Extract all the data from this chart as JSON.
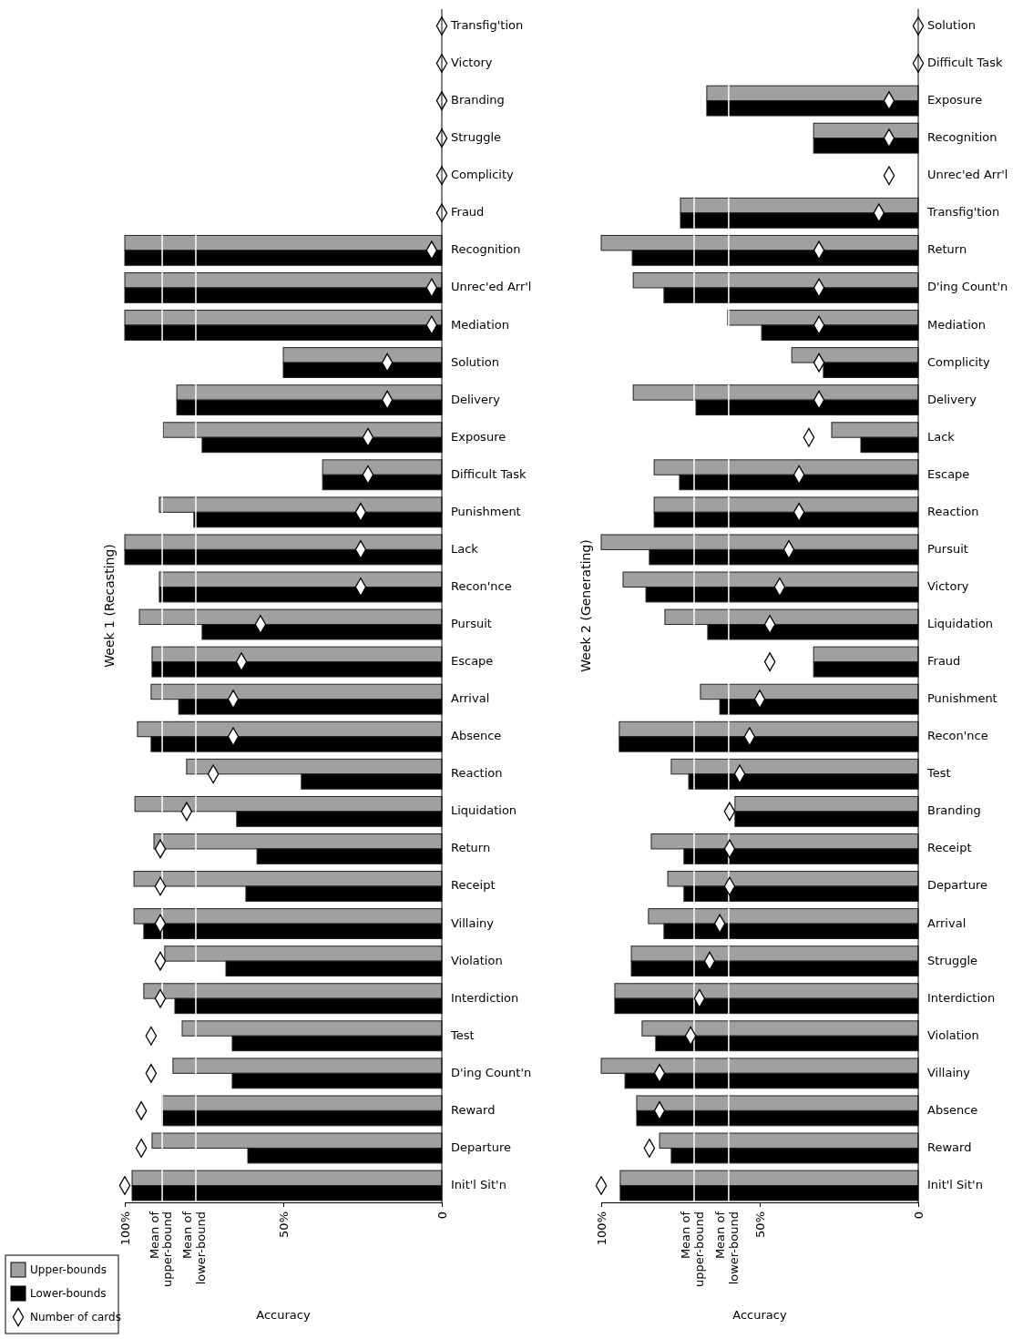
{
  "chart_data": [
    {
      "type": "bar",
      "orientation": "horizontal",
      "title": "Week 1 (Recasting)",
      "xlabel": "Accuracy",
      "categories": [
        "Transfig'tion",
        "Victory",
        "Branding",
        "Struggle",
        "Complicity",
        "Fraud",
        "Recognition",
        "Unrec'ed Arr'l",
        "Mediation",
        "Solution",
        "Delivery",
        "Exposure",
        "Difficult Task",
        "Punishment",
        "Lack",
        "Recon'nce",
        "Pursuit",
        "Escape",
        "Arrival",
        "Absence",
        "Reaction",
        "Liquidation",
        "Return",
        "Receipt",
        "Villainy",
        "Violation",
        "Interdiction",
        "Test",
        "D'ing Count'n",
        "Reward",
        "Departure",
        "Init'l Sit'n"
      ],
      "series": [
        {
          "name": "Upper-bounds",
          "type": "bar",
          "color": "#a0a0a0",
          "values": [
            0,
            0,
            0,
            0,
            0,
            0,
            100,
            100,
            100,
            50,
            83.6,
            87.9,
            37.6,
            89.1,
            100,
            89.1,
            95.4,
            91.4,
            91.7,
            96,
            80.5,
            96.8,
            90.8,
            97.1,
            97.1,
            87.4,
            94,
            81.9,
            84.8,
            88.2,
            91.4,
            97.7
          ]
        },
        {
          "name": "Lower-bounds",
          "type": "bar",
          "color": "#000000",
          "values": [
            0,
            0,
            0,
            0,
            0,
            0,
            100,
            100,
            100,
            50,
            83.6,
            75.6,
            37.6,
            78.2,
            100,
            89.1,
            75.6,
            91.4,
            83,
            91.7,
            44.3,
            64.7,
            58.3,
            61.8,
            94,
            68.1,
            84.2,
            66.1,
            66.1,
            88.2,
            61.2,
            97.7
          ]
        },
        {
          "name": "Number of cards",
          "type": "scatter",
          "color": "#ffffff",
          "marker": "diamond",
          "x": [
            "Transfig'tion",
            "Victory",
            "Branding",
            "Struggle",
            "Complicity",
            "Fraud",
            "Recognition",
            "Unrec'ed Arr'l",
            "Mediation",
            "Solution",
            "Delivery",
            "Exposure",
            "Difficult Task",
            "Punishment",
            "Lack",
            "Recon'nce",
            "Pursuit",
            "Escape",
            "Arrival",
            "Absence",
            "Reaction",
            "Liquidation",
            "Return",
            "Receipt",
            "Villainy",
            "Violation",
            "Interdiction",
            "Test",
            "D'ing Count'n",
            "Reward",
            "Departure",
            "Init'l Sit'n"
          ],
          "values": [
            0,
            0,
            0,
            0,
            0,
            0,
            3.2,
            3.2,
            3.2,
            17.2,
            17.2,
            23.3,
            23.3,
            25.6,
            25.6,
            25.6,
            57.2,
            63.2,
            65.8,
            65.8,
            72.1,
            80.5,
            88.8,
            88.8,
            88.8,
            88.8,
            88.8,
            91.7,
            91.7,
            94.8,
            94.8,
            100
          ]
        }
      ],
      "xlim": [
        100,
        0
      ],
      "xticks": [
        {
          "value": 100,
          "label": "100%"
        },
        {
          "value": 50,
          "label": "50%"
        },
        {
          "value": 0,
          "label": "0"
        }
      ],
      "ref_lines": [
        {
          "axis": "x",
          "value": 88.2,
          "label": "Mean of upper-bound",
          "color": "#ffffff"
        },
        {
          "axis": "x",
          "value": 77.6,
          "label": "Mean of lower-bound",
          "color": "#ffffff"
        }
      ],
      "legend": "bottom left"
    },
    {
      "type": "bar",
      "orientation": "horizontal",
      "title": "Week 2 (Generating)",
      "xlabel": "Accuracy",
      "categories": [
        "Solution",
        "Difficult Task",
        "Exposure",
        "Recognition",
        "Unrec'ed Arr'l",
        "Transfig'tion",
        "Return",
        "D'ing Count'n",
        "Mediation",
        "Complicity",
        "Delivery",
        "Lack",
        "Escape",
        "Reaction",
        "Pursuit",
        "Victory",
        "Liquidation",
        "Fraud",
        "Punishment",
        "Recon'nce",
        "Test",
        "Branding",
        "Receipt",
        "Departure",
        "Arrival",
        "Struggle",
        "Interdiction",
        "Violation",
        "Villainy",
        "Absence",
        "Reward",
        "Init'l Sit'n"
      ],
      "series": [
        {
          "type": "bar",
          "color": "#a0a0a0",
          "values": [
            0,
            0,
            66.7,
            33,
            0,
            75,
            100,
            89.9,
            60.1,
            39.9,
            89.9,
            27.3,
            83.3,
            83.3,
            100,
            93.1,
            79.9,
            33,
            68.7,
            94.3,
            77.9,
            57.8,
            84.2,
            79,
            85.1,
            90.5,
            95.7,
            87.1,
            100,
            88.8,
            81.6,
            94
          ]
        },
        {
          "type": "bar",
          "color": "#000000",
          "values": [
            0,
            0,
            66.7,
            33,
            0,
            75,
            90.2,
            80.2,
            49.4,
            29.9,
            70.1,
            18.1,
            75.3,
            83.3,
            84.8,
            85.9,
            66.4,
            33,
            62.6,
            94.3,
            72.4,
            57.8,
            73.9,
            73.9,
            80.2,
            90.5,
            95.7,
            82.8,
            92.5,
            88.8,
            77.9,
            94
          ]
        },
        {
          "type": "scatter",
          "color": "#ffffff",
          "marker": "diamond",
          "x": [
            "Solution",
            "Difficult Task",
            "Exposure",
            "Recognition",
            "Unrec'ed Arr'l",
            "Transfig'tion",
            "Return",
            "D'ing Count'n",
            "Mediation",
            "Complicity",
            "Delivery",
            "Lack",
            "Escape",
            "Reaction",
            "Pursuit",
            "Victory",
            "Liquidation",
            "Fraud",
            "Punishment",
            "Recon'nce",
            "Test",
            "Branding",
            "Receipt",
            "Departure",
            "Arrival",
            "Struggle",
            "Interdiction",
            "Violation",
            "Villainy",
            "Absence",
            "Reward",
            "Init'l Sit'n"
          ],
          "values": [
            0,
            0,
            9.2,
            9.2,
            9.2,
            12.4,
            31.3,
            31.3,
            31.3,
            31.3,
            31.3,
            34.5,
            37.6,
            37.6,
            40.8,
            43.7,
            46.8,
            46.8,
            50,
            53.2,
            56.3,
            59.5,
            59.5,
            59.5,
            62.6,
            65.8,
            69,
            71.8,
            81.6,
            81.6,
            84.8,
            100
          ]
        }
      ],
      "xlim": [
        100,
        0
      ],
      "xticks": [
        {
          "value": 100,
          "label": "100%"
        },
        {
          "value": 50,
          "label": "50%"
        },
        {
          "value": 0,
          "label": "0"
        }
      ],
      "ref_lines": [
        {
          "axis": "x",
          "value": 70.7,
          "label": "Mean of upper-bound",
          "color": "#ffffff"
        },
        {
          "axis": "x",
          "value": 59.8,
          "label": "Mean of lower-bound",
          "color": "#ffffff"
        }
      ]
    }
  ]
}
